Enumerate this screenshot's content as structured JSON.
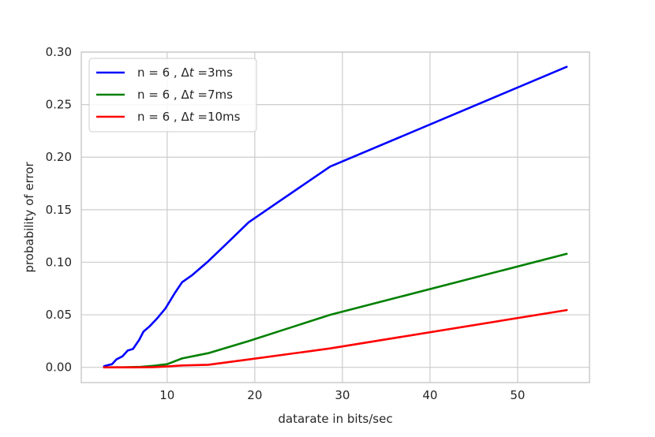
{
  "chart_data": {
    "type": "line",
    "title": "",
    "xlabel": "datarate in bits/sec",
    "ylabel": "probability of error",
    "xlim": [
      0.2,
      58.2
    ],
    "ylim": [
      -0.0145,
      0.3
    ],
    "xticks": [
      10,
      20,
      30,
      40,
      50
    ],
    "yticks": [
      0.0,
      0.05,
      0.1,
      0.15,
      0.2,
      0.25,
      0.3
    ],
    "ytick_labels": [
      "0.00",
      "0.05",
      "0.10",
      "0.15",
      "0.20",
      "0.25",
      "0.30"
    ],
    "grid": true,
    "legend_position": "top-left",
    "series": [
      {
        "name": "n = 6 , Δt =3ms",
        "legend_prefix": "n = 6 , Δ",
        "legend_var": "t",
        "legend_suffix": " =3ms",
        "color": "#0000ff",
        "points": [
          [
            2.8,
            0.001
          ],
          [
            3.2,
            0.002
          ],
          [
            3.7,
            0.003
          ],
          [
            4.2,
            0.0075
          ],
          [
            4.9,
            0.0105
          ],
          [
            5.5,
            0.016
          ],
          [
            6.1,
            0.0175
          ],
          [
            6.8,
            0.026
          ],
          [
            7.3,
            0.034
          ],
          [
            8.0,
            0.039
          ],
          [
            8.9,
            0.047
          ],
          [
            9.8,
            0.056
          ],
          [
            10.9,
            0.071
          ],
          [
            11.7,
            0.081
          ],
          [
            12.9,
            0.088
          ],
          [
            14.7,
            0.101
          ],
          [
            16.7,
            0.117
          ],
          [
            19.3,
            0.138
          ],
          [
            22.8,
            0.158
          ],
          [
            28.6,
            0.191
          ],
          [
            55.6,
            0.286
          ]
        ]
      },
      {
        "name": "n = 6 , Δt =7ms",
        "legend_prefix": "n = 6 , Δ",
        "legend_var": "t",
        "legend_suffix": " =7ms",
        "color": "#008000",
        "points": [
          [
            2.8,
            0.0
          ],
          [
            5.0,
            0.0
          ],
          [
            7.0,
            0.0005
          ],
          [
            8.5,
            0.0015
          ],
          [
            10.0,
            0.003
          ],
          [
            11.7,
            0.0085
          ],
          [
            14.7,
            0.0135
          ],
          [
            19.3,
            0.025
          ],
          [
            28.6,
            0.05
          ],
          [
            55.6,
            0.108
          ]
        ]
      },
      {
        "name": "n = 6 , Δt =10ms",
        "legend_prefix": "n = 6 , Δ",
        "legend_var": "t",
        "legend_suffix": " =10ms",
        "color": "#ff0000",
        "points": [
          [
            2.8,
            0.0
          ],
          [
            6.0,
            0.0
          ],
          [
            8.5,
            0.0002
          ],
          [
            10.0,
            0.0008
          ],
          [
            11.7,
            0.0018
          ],
          [
            14.7,
            0.0025
          ],
          [
            19.3,
            0.0075
          ],
          [
            28.6,
            0.018
          ],
          [
            55.6,
            0.0545
          ]
        ]
      }
    ]
  }
}
